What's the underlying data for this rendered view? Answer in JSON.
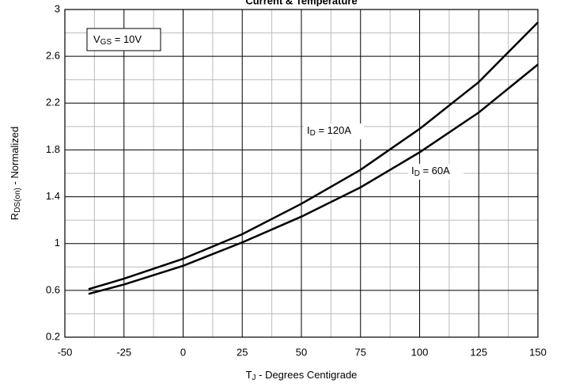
{
  "chart_data": {
    "type": "line",
    "title": "Current & Temperature",
    "x_label": {
      "main": "T",
      "sub": "J",
      "rest": " - Degrees Centigrade"
    },
    "y_label": {
      "main": "R",
      "sub": "DS(on)",
      "rest": " - Normalized"
    },
    "annotations": [
      {
        "main": "V",
        "sub": "GS",
        "rest": " = 10V"
      }
    ],
    "x": [
      -40,
      -25,
      0,
      25,
      50,
      75,
      100,
      125,
      150
    ],
    "series": [
      {
        "label": {
          "main": "I",
          "sub": "D",
          "rest": " = 120A"
        },
        "color": "#000000",
        "values": [
          0.61,
          0.7,
          0.87,
          1.08,
          1.34,
          1.63,
          1.98,
          2.38,
          2.89
        ]
      },
      {
        "label": {
          "main": "I",
          "sub": "D",
          "rest": " = 60A"
        },
        "color": "#000000",
        "values": [
          0.57,
          0.65,
          0.81,
          1.01,
          1.23,
          1.48,
          1.78,
          2.12,
          2.53
        ]
      }
    ],
    "xlim": [
      -50,
      150
    ],
    "xticks": [
      -50,
      -25,
      0,
      25,
      50,
      75,
      100,
      125,
      150
    ],
    "ylim": [
      0.2,
      3.0
    ],
    "yticks": [
      0.2,
      0.6,
      1.0,
      1.4,
      1.8,
      2.2,
      2.6,
      3.0
    ],
    "grid": true
  }
}
